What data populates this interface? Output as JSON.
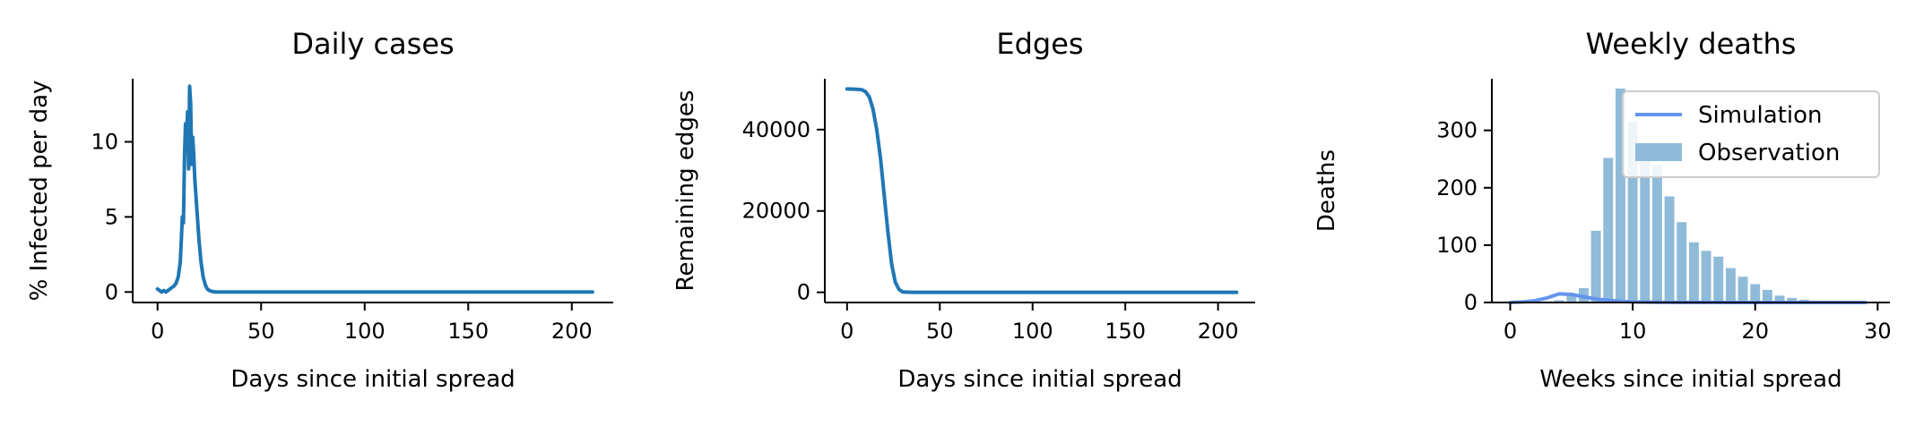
{
  "chart_data": [
    {
      "type": "line",
      "title": "Daily cases",
      "xlabel": "Days since initial spread",
      "ylabel": "% Infected per day",
      "xlim": [
        -12,
        220
      ],
      "ylim": [
        -0.7,
        14.2
      ],
      "xticks": [
        0,
        50,
        100,
        150,
        200
      ],
      "yticks": [
        0,
        5,
        10
      ],
      "grid": false,
      "color": "#1f77b4",
      "series": [
        {
          "x": [
            0,
            1,
            2,
            3,
            4,
            5,
            6,
            7,
            8,
            9,
            10,
            11,
            12,
            12.5,
            13,
            13.5,
            14,
            14.5,
            15,
            15.5,
            16,
            16.5,
            17,
            17.5,
            18,
            19,
            20,
            21,
            22,
            23,
            24,
            25,
            26,
            27,
            28,
            30,
            35,
            40,
            50,
            60,
            80,
            100,
            120,
            140,
            160,
            180,
            200,
            210
          ],
          "y": [
            0.2,
            0.1,
            0.0,
            0.1,
            0.0,
            0.1,
            0.2,
            0.3,
            0.4,
            0.6,
            1.0,
            2.0,
            5.0,
            4.6,
            9.0,
            11.2,
            10.0,
            12.0,
            8.2,
            13.7,
            12.5,
            8.5,
            10.3,
            9.0,
            7.5,
            5.5,
            3.5,
            2.0,
            1.0,
            0.5,
            0.2,
            0.1,
            0.05,
            0.02,
            0,
            0,
            0,
            0,
            0,
            0,
            0,
            0,
            0,
            0,
            0,
            0,
            0,
            0
          ]
        }
      ]
    },
    {
      "type": "line",
      "title": "Edges",
      "xlabel": "Days since initial spread",
      "ylabel": "Remaining edges",
      "xlim": [
        -12,
        220
      ],
      "ylim": [
        -2500,
        52500
      ],
      "xticks": [
        0,
        50,
        100,
        150,
        200
      ],
      "yticks": [
        0,
        20000,
        40000
      ],
      "grid": false,
      "color": "#1f77b4",
      "series": [
        {
          "x": [
            0,
            5,
            8,
            10,
            12,
            14,
            16,
            18,
            20,
            22,
            24,
            26,
            28,
            30,
            35,
            40,
            50,
            100,
            150,
            200,
            210
          ],
          "y": [
            50000,
            49900,
            49800,
            49300,
            48000,
            45000,
            40000,
            33000,
            24000,
            15000,
            7000,
            2500,
            700,
            100,
            0,
            0,
            0,
            0,
            0,
            0,
            0
          ]
        }
      ]
    },
    {
      "type": "bar",
      "title": "Weekly deaths",
      "xlabel": "Weeks since initial spread",
      "ylabel": "Deaths",
      "xlim": [
        -1.5,
        31
      ],
      "ylim": [
        0,
        390
      ],
      "xticks": [
        0,
        10,
        20,
        30
      ],
      "yticks": [
        0,
        100,
        200,
        300
      ],
      "grid": false,
      "legend_placement": "upper right",
      "legend": [
        {
          "label": "Simulation",
          "kind": "line",
          "color": "#6495ed"
        },
        {
          "label": "Observation",
          "kind": "bar",
          "color": "#8fbbd9"
        }
      ],
      "series": [
        {
          "name": "Observation",
          "kind": "bar",
          "color": "#8fbbd9",
          "x": [
            0,
            1,
            2,
            3,
            4,
            5,
            6,
            7,
            8,
            9,
            10,
            11,
            12,
            13,
            14,
            15,
            16,
            17,
            18,
            19,
            20,
            21,
            22,
            23,
            24,
            25,
            26,
            27,
            28,
            29
          ],
          "values": [
            1,
            1,
            1,
            2,
            4,
            15,
            25,
            125,
            252,
            373,
            315,
            265,
            240,
            185,
            140,
            105,
            90,
            80,
            60,
            45,
            32,
            22,
            12,
            8,
            5,
            3,
            2,
            1,
            1,
            1
          ]
        },
        {
          "name": "Simulation",
          "kind": "line",
          "color": "#6495ed",
          "x": [
            0,
            1,
            2,
            3,
            4,
            5,
            6,
            7,
            8,
            9,
            10,
            12,
            14,
            16,
            18,
            20,
            25,
            29
          ],
          "y": [
            0,
            1,
            3,
            8,
            15,
            14,
            10,
            6,
            4,
            2,
            1,
            0.5,
            0.2,
            0.1,
            0,
            0,
            0,
            0
          ]
        }
      ]
    }
  ]
}
